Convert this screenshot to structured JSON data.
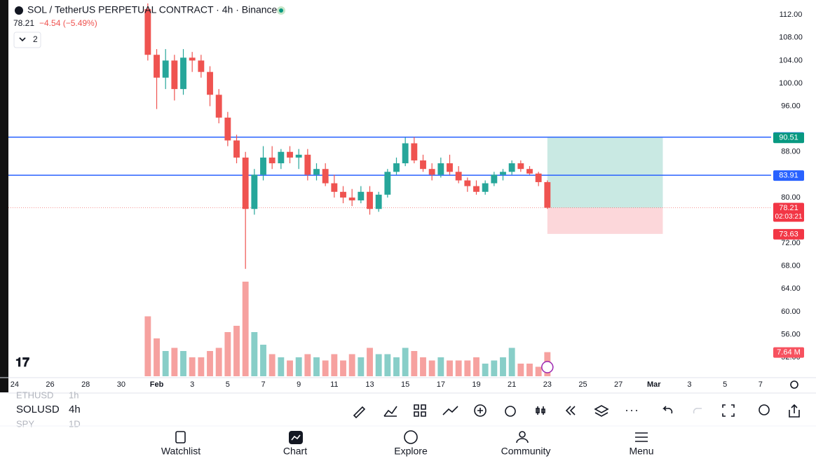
{
  "header": {
    "title": "SOL / TetherUS PERPETUAL CONTRACT · 4h · Binance",
    "price": "78.21",
    "change": "−4.54 (−5.49%)",
    "indicators": "2"
  },
  "chart_data": {
    "type": "candlestick",
    "x": [
      7.5,
      8,
      8.5,
      9,
      9.5,
      10,
      10.5,
      11,
      11.5,
      12,
      12.5,
      13,
      13.5,
      14,
      14.5,
      15,
      15.5,
      16,
      16.5,
      17,
      17.5,
      18,
      18.5,
      19,
      19.5,
      20,
      20.5,
      21,
      21.5,
      22,
      22.5,
      23,
      23.5,
      24,
      24.5,
      25,
      25.5,
      26,
      26.5,
      27,
      27.5,
      28,
      28.5,
      29,
      29.5,
      30
    ],
    "open": [
      113,
      105,
      101,
      104,
      99,
      104.5,
      104,
      102,
      98,
      94,
      90,
      87,
      78,
      84,
      87,
      86,
      88,
      87,
      87.5,
      84,
      85,
      82.5,
      81,
      80,
      79.5,
      81,
      78,
      80.5,
      84.5,
      86,
      89.5,
      86.5,
      85,
      84,
      86,
      84.5,
      83,
      82,
      81,
      82.5,
      84,
      84.5,
      86,
      85,
      84.2,
      82.7
    ],
    "high": [
      114,
      106,
      106,
      105,
      106,
      105.5,
      105,
      103,
      99,
      95,
      91,
      88,
      85,
      89,
      89,
      88.5,
      89,
      88.5,
      88.5,
      86,
      86,
      84,
      82,
      81.5,
      82,
      82,
      81,
      85,
      87,
      90.5,
      90.6,
      87.5,
      86,
      87,
      87.5,
      85.5,
      83.5,
      83,
      83,
      84.5,
      85,
      86.5,
      86.5,
      85.5,
      84.5,
      83
    ],
    "low": [
      104,
      95.5,
      99,
      97,
      98,
      102,
      101,
      96,
      93,
      89,
      86,
      67.5,
      77,
      83,
      85,
      85,
      86,
      85,
      83,
      83,
      82,
      80,
      79,
      78.5,
      79,
      77,
      77.5,
      80,
      84,
      85.5,
      86,
      84.5,
      83,
      83.5,
      84,
      82.5,
      81,
      80.5,
      80.5,
      82,
      83,
      84,
      84.5,
      84,
      82,
      78.01
    ],
    "close": [
      105,
      101,
      104,
      99,
      104.5,
      104,
      102,
      98,
      94,
      90,
      87,
      78,
      84,
      87,
      86,
      88,
      87,
      87.5,
      84,
      85,
      82.5,
      81,
      80,
      79.5,
      81,
      78,
      80.5,
      84.5,
      86,
      89.5,
      86.5,
      85,
      84,
      86,
      84.5,
      83,
      82,
      81,
      82.5,
      84,
      84.5,
      86,
      85,
      84.2,
      82.7,
      78.21
    ],
    "volume": [
      19,
      12,
      8,
      9,
      8,
      6,
      6,
      8,
      9,
      14,
      16,
      30,
      14,
      10,
      7,
      6,
      5,
      6,
      7,
      6,
      5,
      7,
      5,
      7,
      6,
      9,
      7,
      7,
      6,
      9,
      8,
      6,
      5,
      6,
      5,
      5,
      5,
      6,
      4,
      5,
      6,
      9,
      4,
      4,
      3,
      7.64
    ],
    "volume_value_label": "7.64 M",
    "up_color": "#26a69a",
    "down_color": "#ef5350",
    "xlim": [
      -0.35,
      42.6
    ],
    "xticks": [
      {
        "value": 0,
        "label": "24"
      },
      {
        "value": 2,
        "label": "26"
      },
      {
        "value": 4,
        "label": "28"
      },
      {
        "value": 6,
        "label": "30"
      },
      {
        "value": 8,
        "label": "Feb"
      },
      {
        "value": 10,
        "label": "3"
      },
      {
        "value": 12,
        "label": "5"
      },
      {
        "value": 14,
        "label": "7"
      },
      {
        "value": 16,
        "label": "9"
      },
      {
        "value": 18,
        "label": "11"
      },
      {
        "value": 20,
        "label": "13"
      },
      {
        "value": 22,
        "label": "15"
      },
      {
        "value": 24,
        "label": "17"
      },
      {
        "value": 26,
        "label": "19"
      },
      {
        "value": 28,
        "label": "21"
      },
      {
        "value": 30,
        "label": "23"
      },
      {
        "value": 32,
        "label": "25"
      },
      {
        "value": 34,
        "label": "27"
      },
      {
        "value": 36,
        "label": "Mar"
      },
      {
        "value": 38,
        "label": "3"
      },
      {
        "value": 40,
        "label": "5"
      },
      {
        "value": 42,
        "label": "7"
      }
    ],
    "ylim": [
      48.7,
      114.6
    ],
    "yticks": [
      {
        "value": 112,
        "label": "112.00"
      },
      {
        "value": 108,
        "label": "108.00"
      },
      {
        "value": 104,
        "label": "104.00"
      },
      {
        "value": 100,
        "label": "100.00"
      },
      {
        "value": 96,
        "label": "96.00"
      },
      {
        "value": 88,
        "label": "88.00"
      },
      {
        "value": 80,
        "label": "80.00"
      },
      {
        "value": 72,
        "label": "72.00"
      },
      {
        "value": 68,
        "label": "68.00"
      },
      {
        "value": 64,
        "label": "64.00"
      },
      {
        "value": 60,
        "label": "60.00"
      },
      {
        "value": 56,
        "label": "56.00"
      },
      {
        "value": 52,
        "label": "52.00"
      }
    ],
    "volume_lim": [
      0,
      30
    ],
    "lines": [
      {
        "value": 90.58,
        "color": "#2962ff"
      },
      {
        "value": 83.91,
        "color": "#2962ff"
      }
    ],
    "position": {
      "start": 30,
      "end": 36.5,
      "target": 90.51,
      "entry": 78.21,
      "stop": 73.63
    },
    "last_price": 78.21,
    "countdown": "02:03:21",
    "marker_price": 78.01
  },
  "toolbar": {
    "symbol": "SOLUSD",
    "interval": "4h",
    "prev_symbol": "ETHUSD",
    "prev_interval": "1h",
    "next_symbol": "SPY",
    "next_interval": "1D"
  },
  "nav": [
    "Watchlist",
    "Chart",
    "Explore",
    "Community",
    "Menu"
  ]
}
